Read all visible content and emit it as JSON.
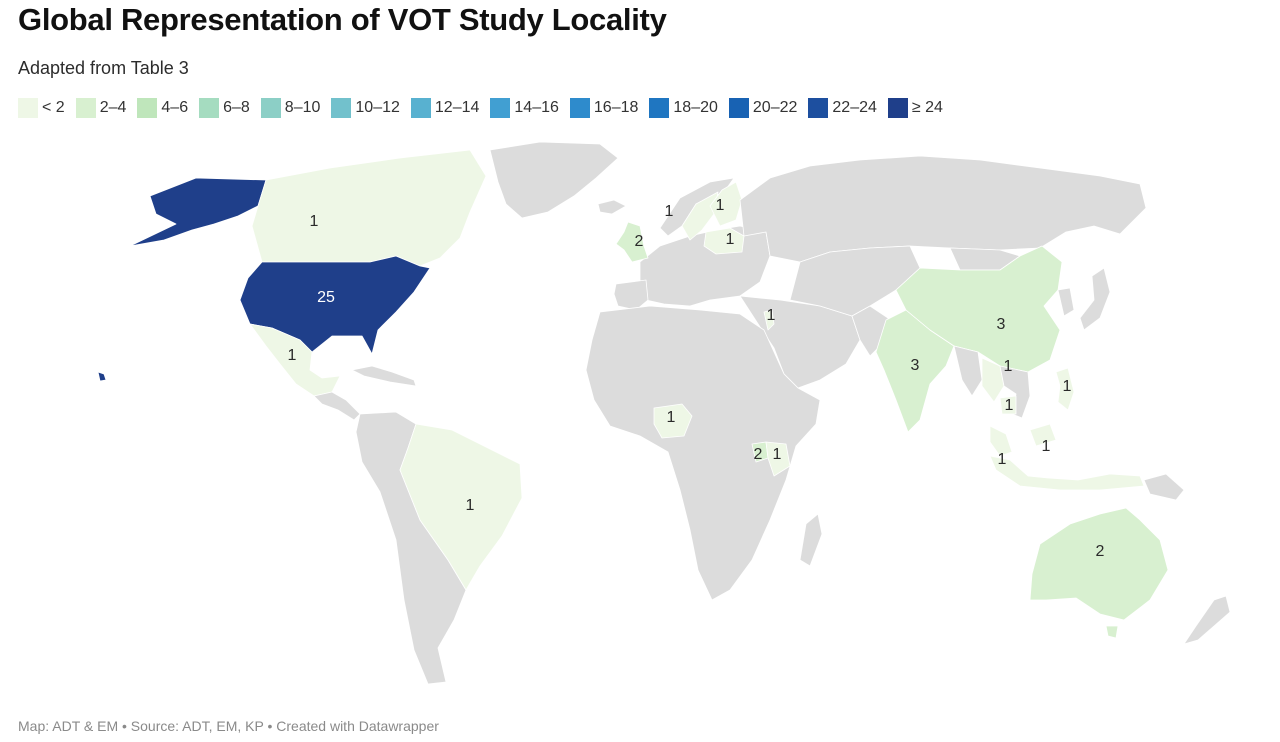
{
  "header": {
    "title": "Global Representation of VOT Study Locality",
    "subtitle": "Adapted from Table 3"
  },
  "legend": {
    "bins": [
      {
        "label": "< 2",
        "color": "#eef7e6"
      },
      {
        "label": "2–4",
        "color": "#d8f0d0"
      },
      {
        "label": "4–6",
        "color": "#bfe6bb"
      },
      {
        "label": "6–8",
        "color": "#a5dcc0"
      },
      {
        "label": "8–10",
        "color": "#8ccfc6"
      },
      {
        "label": "10–12",
        "color": "#72c1cc"
      },
      {
        "label": "12–14",
        "color": "#58b1d0"
      },
      {
        "label": "14–16",
        "color": "#419fd2"
      },
      {
        "label": "16–18",
        "color": "#2e8bcc"
      },
      {
        "label": "18–20",
        "color": "#1f76c1"
      },
      {
        "label": "20–22",
        "color": "#1862b3"
      },
      {
        "label": "22–24",
        "color": "#1d4f9f"
      },
      {
        "label": "≥ 24",
        "color": "#1f3f8a"
      }
    ]
  },
  "map": {
    "no_data_color": "#dcdcdc",
    "regions": [
      {
        "name": "United States",
        "value": 25,
        "label": "25"
      },
      {
        "name": "Canada",
        "value": 1,
        "label": "1"
      },
      {
        "name": "Mexico",
        "value": 1,
        "label": "1"
      },
      {
        "name": "Brazil",
        "value": 1,
        "label": "1"
      },
      {
        "name": "United Kingdom",
        "value": 2,
        "label": "2"
      },
      {
        "name": "Sweden",
        "value": 1,
        "label": "1"
      },
      {
        "name": "Finland",
        "value": 1,
        "label": "1"
      },
      {
        "name": "Poland",
        "value": 1,
        "label": "1"
      },
      {
        "name": "Israel",
        "value": 1,
        "label": "1"
      },
      {
        "name": "Nigeria",
        "value": 1,
        "label": "1"
      },
      {
        "name": "Uganda",
        "value": 2,
        "label": "2"
      },
      {
        "name": "Kenya",
        "value": 1,
        "label": "1"
      },
      {
        "name": "India",
        "value": 3,
        "label": "3"
      },
      {
        "name": "China",
        "value": 3,
        "label": "3"
      },
      {
        "name": "Thailand",
        "value": 1,
        "label": "1"
      },
      {
        "name": "Cambodia",
        "value": 1,
        "label": "1"
      },
      {
        "name": "Philippines",
        "value": 1,
        "label": "1"
      },
      {
        "name": "Malaysia",
        "value": 1,
        "label": "1"
      },
      {
        "name": "Indonesia",
        "value": 1,
        "label": "1"
      },
      {
        "name": "Australia",
        "value": 2,
        "label": "2"
      }
    ]
  },
  "footer": {
    "credit": "Map: ADT & EM • Source: ADT, EM, KP • Created with Datawrapper"
  }
}
